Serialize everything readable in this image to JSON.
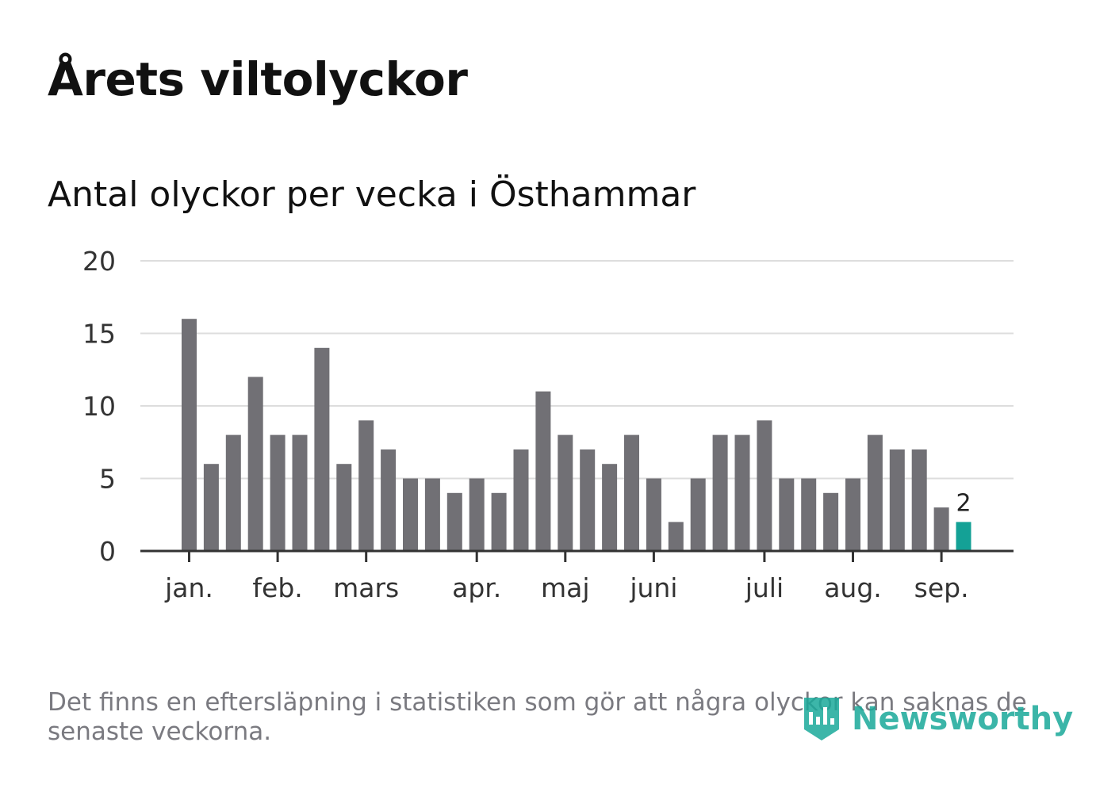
{
  "title": "Årets viltolyckor",
  "subtitle": "Antal olyckor per vecka i Östhammar",
  "footnote": "Det finns en eftersläpning i statistiken som gör att några olyckor kan saknas de senaste veckorna.",
  "logo_text": "Newsworthy",
  "colors": {
    "bar": "#717075",
    "highlight": "#14a196",
    "grid": "#dddddd",
    "axis": "#333333",
    "text": "#333333"
  },
  "chart_data": {
    "type": "bar",
    "values": [
      16,
      6,
      8,
      12,
      8,
      8,
      14,
      6,
      9,
      7,
      5,
      5,
      4,
      5,
      4,
      7,
      11,
      8,
      7,
      6,
      8,
      5,
      2,
      5,
      8,
      8,
      9,
      5,
      5,
      4,
      5,
      8,
      7,
      7,
      3,
      2
    ],
    "highlight_last": true,
    "last_value_label": "2",
    "ylim": [
      0,
      20
    ],
    "yticks": [
      "0",
      "5",
      "10",
      "15",
      "20"
    ],
    "month_labels": [
      {
        "label": "jan.",
        "week": 1
      },
      {
        "label": "feb.",
        "week": 5
      },
      {
        "label": "mars",
        "week": 9
      },
      {
        "label": "apr.",
        "week": 14
      },
      {
        "label": "maj",
        "week": 18
      },
      {
        "label": "juni",
        "week": 22
      },
      {
        "label": "juli",
        "week": 27
      },
      {
        "label": "aug.",
        "week": 31
      },
      {
        "label": "sep.",
        "week": 35
      }
    ],
    "grid": true
  }
}
